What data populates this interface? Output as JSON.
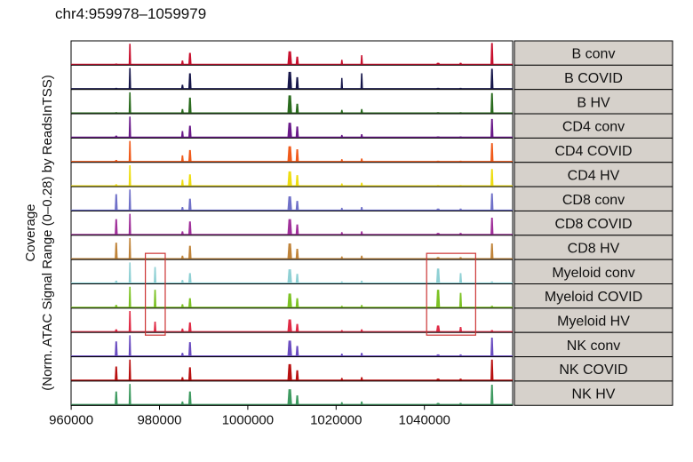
{
  "chart_data": {
    "type": "area",
    "title": "chr4:959978–1059979",
    "ylabel_lines": [
      "Coverage",
      "(Norm. ATAC Signal Range (0–0.28) by ReadsInTSS)"
    ],
    "xlabel": "",
    "xlim": [
      959978,
      1059979
    ],
    "x_ticks": [
      960000,
      980000,
      1000000,
      1020000,
      1040000
    ],
    "x_tick_labels": [
      "960000",
      "980000",
      "1000000",
      "1020000",
      "1040000"
    ],
    "y_range": [
      0,
      0.28
    ],
    "peak_positions": [
      970200,
      973300,
      985200,
      986900,
      1009500,
      1011200,
      1021300,
      1025800,
      1043100,
      1048200,
      1055300,
      979000
    ],
    "tracks": [
      {
        "name": "B conv",
        "color": "#c8102e",
        "values": [
          0.01,
          0.27,
          0.05,
          0.15,
          0.17,
          0.1,
          0.06,
          0.12,
          0.02,
          0.02,
          0.28,
          0.0
        ]
      },
      {
        "name": "B COVID",
        "color": "#16164a",
        "values": [
          0.01,
          0.27,
          0.05,
          0.2,
          0.22,
          0.15,
          0.14,
          0.2,
          0.01,
          0.01,
          0.26,
          0.0
        ]
      },
      {
        "name": "B HV",
        "color": "#2a6b1e",
        "values": [
          0.01,
          0.27,
          0.05,
          0.2,
          0.23,
          0.12,
          0.04,
          0.05,
          0.01,
          0.01,
          0.26,
          0.0
        ]
      },
      {
        "name": "CD4 conv",
        "color": "#6a1a8a",
        "values": [
          0.02,
          0.27,
          0.08,
          0.15,
          0.19,
          0.14,
          0.03,
          0.04,
          0.01,
          0.01,
          0.24,
          0.0
        ]
      },
      {
        "name": "CD4 COVID",
        "color": "#f05a1a",
        "values": [
          0.02,
          0.27,
          0.08,
          0.15,
          0.2,
          0.16,
          0.03,
          0.04,
          0.01,
          0.01,
          0.24,
          0.0
        ]
      },
      {
        "name": "CD4 HV",
        "color": "#eedd11",
        "values": [
          0.02,
          0.27,
          0.08,
          0.15,
          0.19,
          0.14,
          0.03,
          0.04,
          0.01,
          0.01,
          0.22,
          0.0
        ]
      },
      {
        "name": "CD8 conv",
        "color": "#6f70c8",
        "values": [
          0.21,
          0.27,
          0.04,
          0.15,
          0.18,
          0.12,
          0.03,
          0.04,
          0.02,
          0.02,
          0.22,
          0.0
        ]
      },
      {
        "name": "CD8 COVID",
        "color": "#a0309a",
        "values": [
          0.2,
          0.27,
          0.04,
          0.17,
          0.2,
          0.13,
          0.03,
          0.04,
          0.02,
          0.02,
          0.22,
          0.0
        ]
      },
      {
        "name": "CD8 HV",
        "color": "#c0843a",
        "values": [
          0.21,
          0.27,
          0.04,
          0.17,
          0.2,
          0.13,
          0.03,
          0.04,
          0.02,
          0.02,
          0.2,
          0.0
        ]
      },
      {
        "name": "Myeloid conv",
        "color": "#8fd0d4",
        "values": [
          0.03,
          0.27,
          0.04,
          0.13,
          0.18,
          0.12,
          0.02,
          0.03,
          0.19,
          0.13,
          0.02,
          0.21
        ]
      },
      {
        "name": "Myeloid COVID",
        "color": "#7cc224",
        "values": [
          0.03,
          0.27,
          0.04,
          0.12,
          0.18,
          0.12,
          0.02,
          0.03,
          0.23,
          0.19,
          0.02,
          0.23
        ]
      },
      {
        "name": "Myeloid HV",
        "color": "#e02a45",
        "values": [
          0.03,
          0.27,
          0.04,
          0.12,
          0.16,
          0.1,
          0.02,
          0.03,
          0.08,
          0.06,
          0.02,
          0.13
        ]
      },
      {
        "name": "NK conv",
        "color": "#6a4cc0",
        "values": [
          0.19,
          0.27,
          0.04,
          0.18,
          0.2,
          0.13,
          0.03,
          0.04,
          0.02,
          0.02,
          0.24,
          0.0
        ]
      },
      {
        "name": "NK COVID",
        "color": "#b81010",
        "values": [
          0.18,
          0.27,
          0.04,
          0.17,
          0.21,
          0.13,
          0.03,
          0.04,
          0.02,
          0.02,
          0.27,
          0.0
        ]
      },
      {
        "name": "NK HV",
        "color": "#3e9a60",
        "values": [
          0.17,
          0.27,
          0.04,
          0.17,
          0.2,
          0.12,
          0.03,
          0.04,
          0.02,
          0.02,
          0.26,
          0.0
        ]
      }
    ],
    "highlight_regions": [
      {
        "x": [
          976800,
          981300
        ],
        "tracks": [
          "Myeloid conv",
          "Myeloid HV"
        ],
        "color": "#cc3333"
      },
      {
        "x": [
          1040500,
          1051600
        ],
        "tracks": [
          "Myeloid conv",
          "Myeloid HV"
        ],
        "color": "#cc3333"
      }
    ],
    "grid": false,
    "legend": "strip-labels-right",
    "colors": {
      "strip_fill": "#d6d1cb",
      "strip_border": "#000000",
      "box": "#cc3333"
    }
  }
}
